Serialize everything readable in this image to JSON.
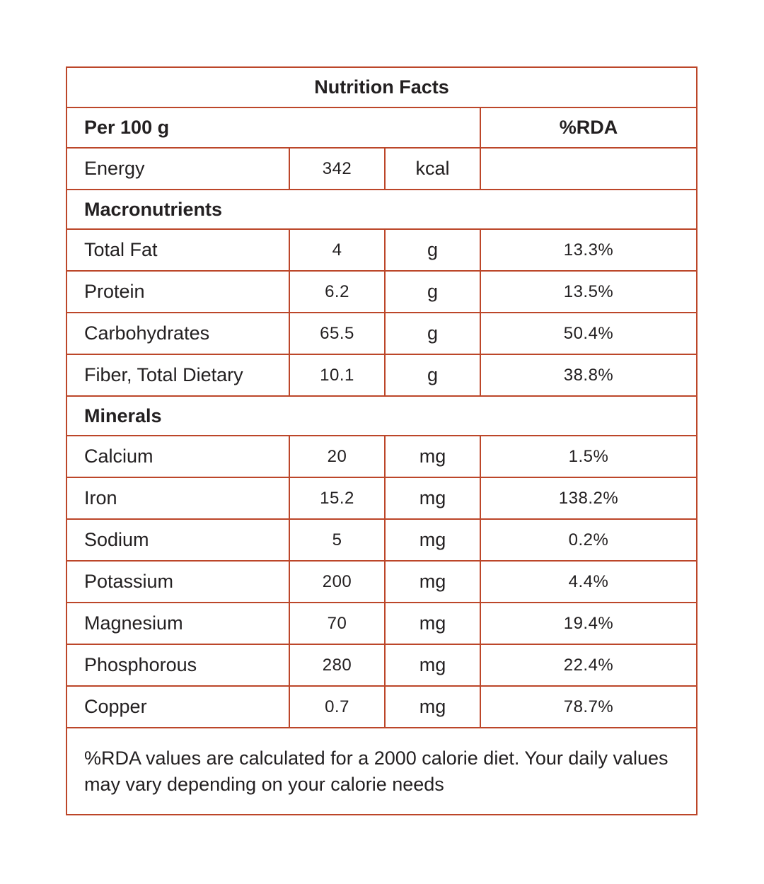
{
  "colors": {
    "border": "#BC4629",
    "text": "#232021",
    "background": "#ffffff"
  },
  "table": {
    "title": "Nutrition Facts",
    "header": {
      "serving": "Per 100 g",
      "rda": "%RDA"
    },
    "energy": {
      "label": "Energy",
      "value": "342",
      "unit": "kcal",
      "rda": ""
    },
    "sections": [
      {
        "heading": "Macronutrients",
        "rows": [
          {
            "label": "Total Fat",
            "value": "4",
            "unit": "g",
            "rda": "13.3%"
          },
          {
            "label": "Protein",
            "value": "6.2",
            "unit": "g",
            "rda": "13.5%"
          },
          {
            "label": "Carbohydrates",
            "value": "65.5",
            "unit": "g",
            "rda": "50.4%"
          },
          {
            "label": "Fiber, Total Dietary",
            "value": "10.1",
            "unit": "g",
            "rda": "38.8%"
          }
        ]
      },
      {
        "heading": "Minerals",
        "rows": [
          {
            "label": "Calcium",
            "value": "20",
            "unit": "mg",
            "rda": "1.5%"
          },
          {
            "label": "Iron",
            "value": "15.2",
            "unit": "mg",
            "rda": "138.2%"
          },
          {
            "label": "Sodium",
            "value": "5",
            "unit": "mg",
            "rda": "0.2%"
          },
          {
            "label": "Potassium",
            "value": "200",
            "unit": "mg",
            "rda": "4.4%"
          },
          {
            "label": "Magnesium",
            "value": "70",
            "unit": "mg",
            "rda": "19.4%"
          },
          {
            "label": "Phosphorous",
            "value": "280",
            "unit": "mg",
            "rda": "22.4%"
          },
          {
            "label": "Copper",
            "value": "0.7",
            "unit": "mg",
            "rda": "78.7%"
          }
        ]
      }
    ],
    "footnote": "%RDA values are calculated for a 2000 calorie diet. Your daily values may vary depending on your calorie needs"
  }
}
